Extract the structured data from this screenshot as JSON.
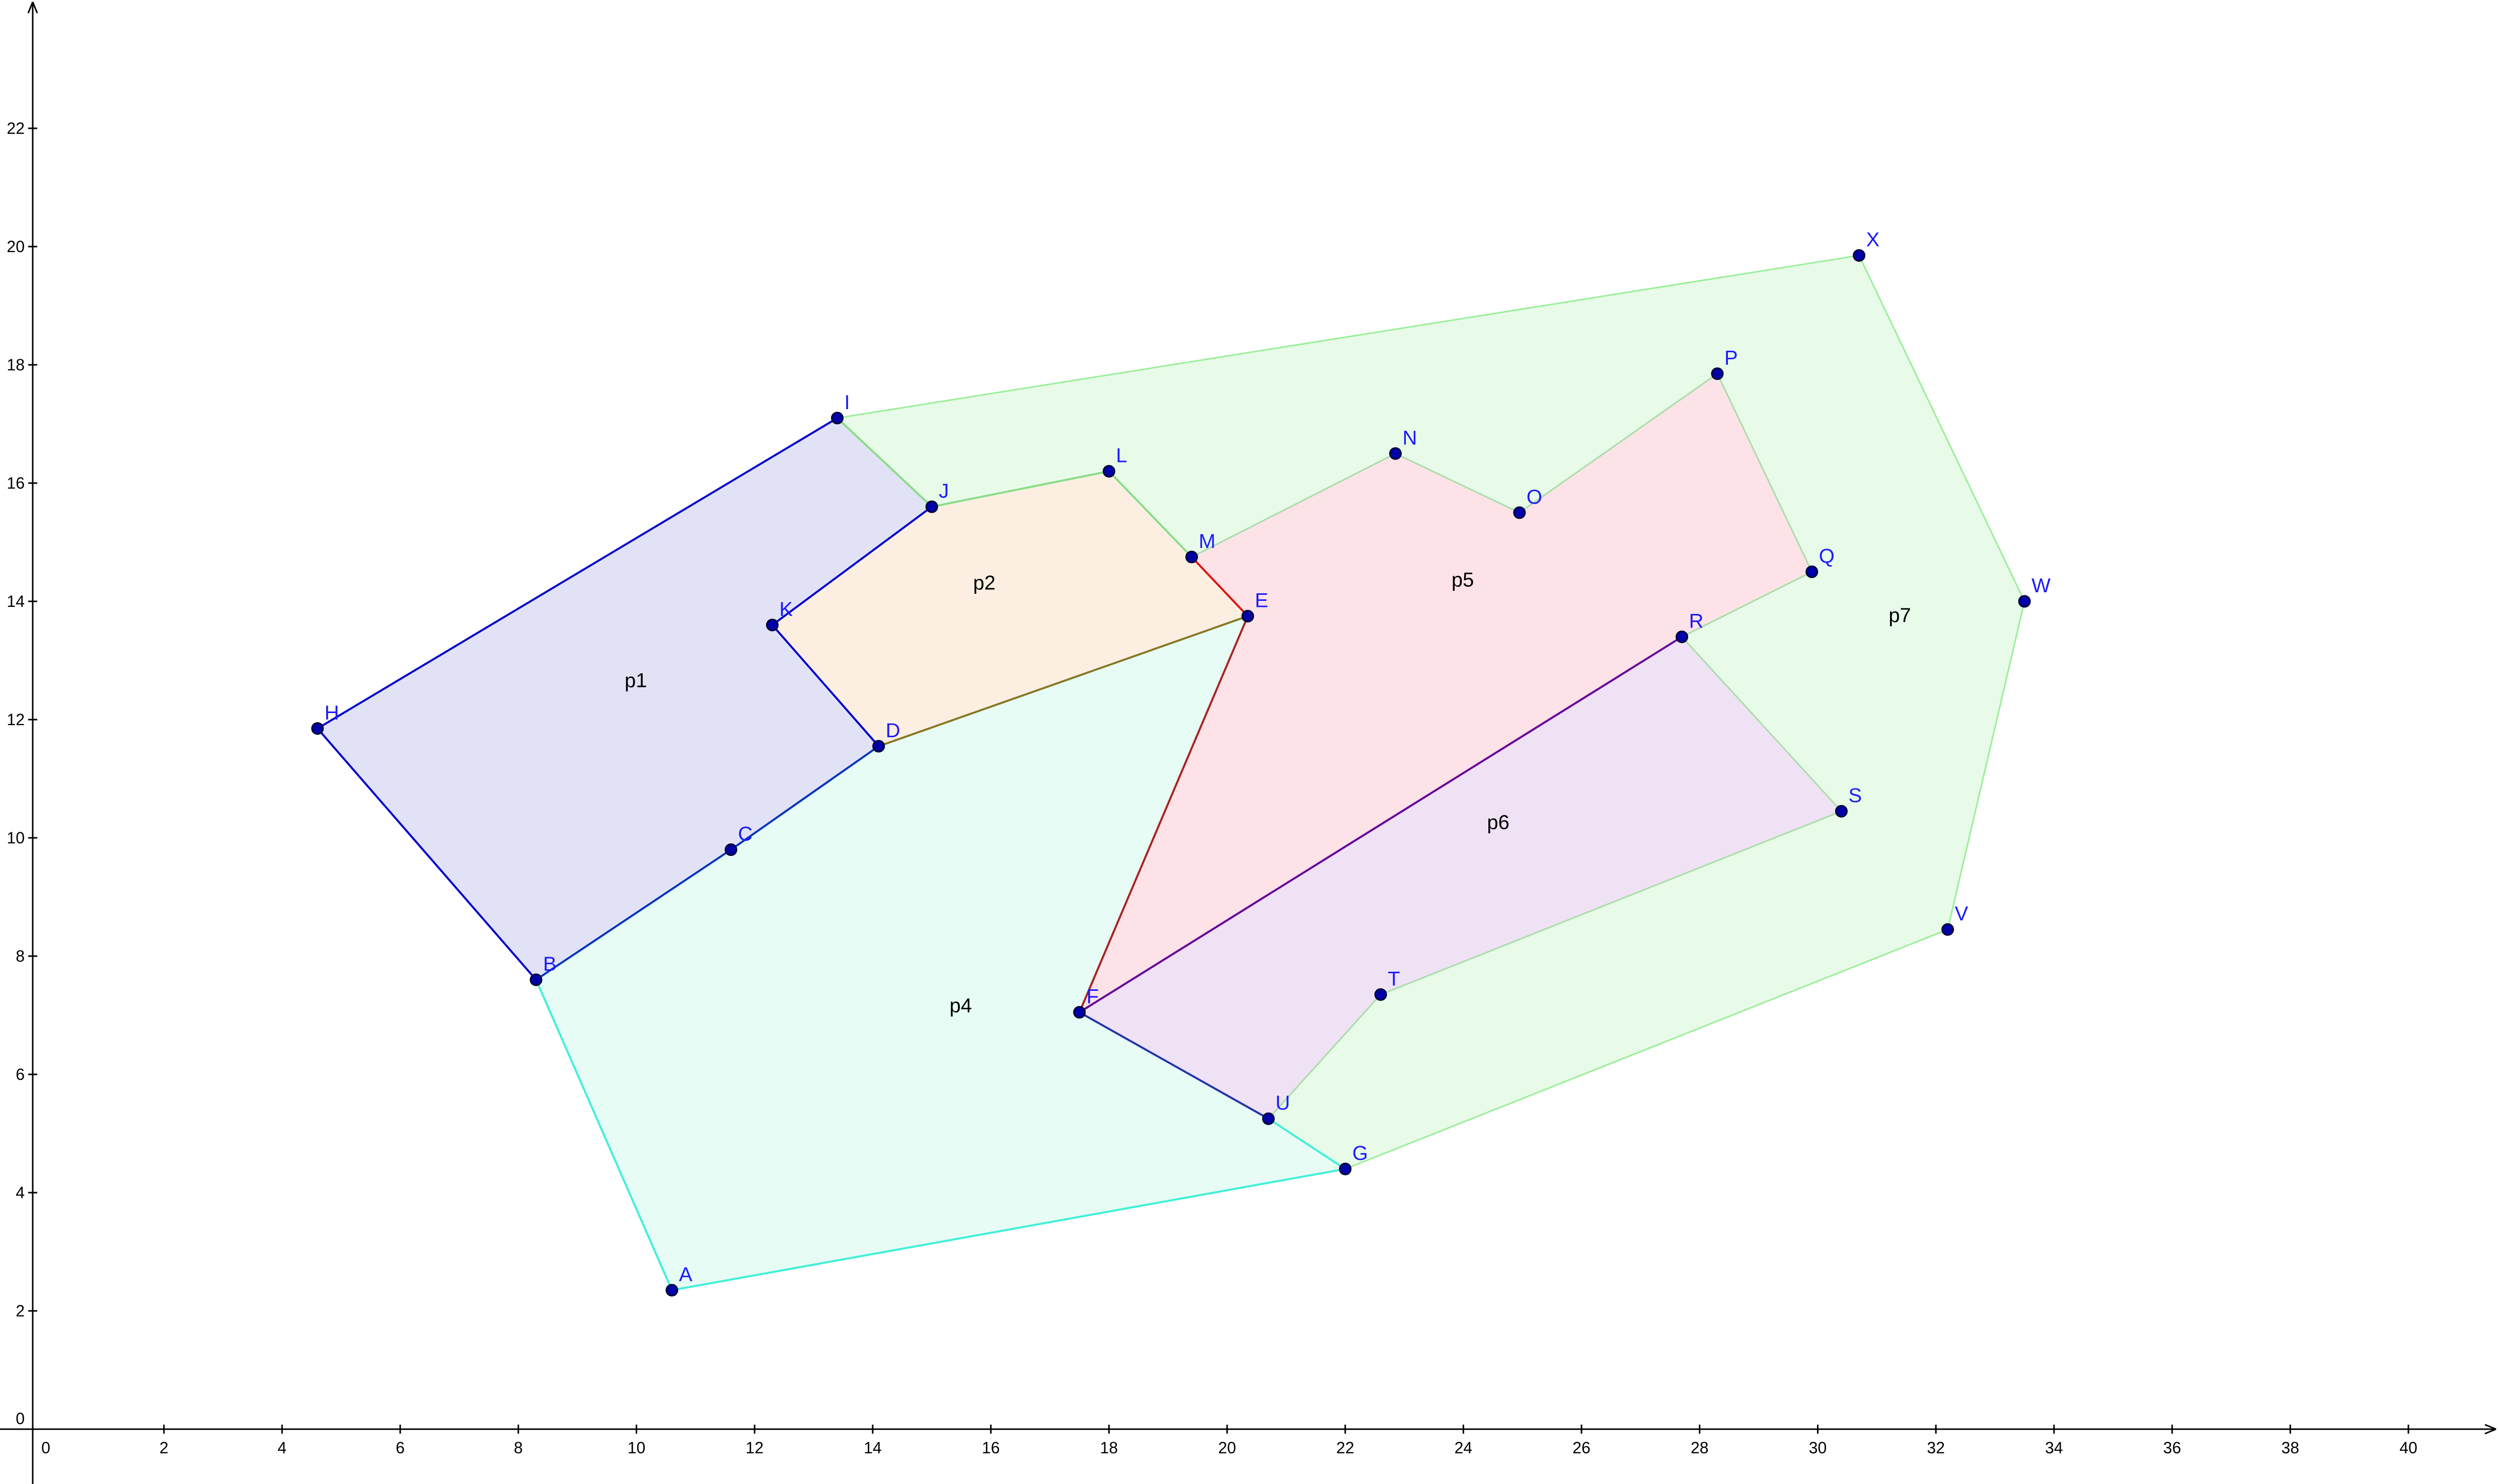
{
  "axes": {
    "x_ticks": [
      "0",
      "2",
      "4",
      "6",
      "8",
      "10",
      "12",
      "14",
      "16",
      "18",
      "20",
      "22",
      "24",
      "26",
      "28",
      "30",
      "32",
      "34",
      "36",
      "38",
      "40"
    ],
    "y_ticks": [
      "0",
      "2",
      "4",
      "6",
      "8",
      "10",
      "12",
      "14",
      "16",
      "18",
      "20",
      "22"
    ],
    "x_range": [
      -0.8,
      41.5
    ],
    "y_range": [
      -1.0,
      24.0
    ]
  },
  "points": [
    {
      "name": "A",
      "x": 10.6,
      "y": 2.35
    },
    {
      "name": "B",
      "x": 8.3,
      "y": 7.6
    },
    {
      "name": "C",
      "x": 11.6,
      "y": 9.8
    },
    {
      "name": "D",
      "x": 14.1,
      "y": 11.55
    },
    {
      "name": "E",
      "x": 20.35,
      "y": 13.75
    },
    {
      "name": "F",
      "x": 17.5,
      "y": 7.05
    },
    {
      "name": "G",
      "x": 22.0,
      "y": 4.4
    },
    {
      "name": "H",
      "x": 4.6,
      "y": 11.85
    },
    {
      "name": "I",
      "x": 13.4,
      "y": 17.1
    },
    {
      "name": "J",
      "x": 15.0,
      "y": 15.6
    },
    {
      "name": "K",
      "x": 12.3,
      "y": 13.6
    },
    {
      "name": "L",
      "x": 18.0,
      "y": 16.2
    },
    {
      "name": "M",
      "x": 19.4,
      "y": 14.75
    },
    {
      "name": "N",
      "x": 22.85,
      "y": 16.5
    },
    {
      "name": "O",
      "x": 24.95,
      "y": 15.5
    },
    {
      "name": "P",
      "x": 28.3,
      "y": 17.85
    },
    {
      "name": "Q",
      "x": 29.9,
      "y": 14.5
    },
    {
      "name": "R",
      "x": 27.7,
      "y": 13.4
    },
    {
      "name": "S",
      "x": 30.4,
      "y": 10.45
    },
    {
      "name": "T",
      "x": 22.6,
      "y": 7.35
    },
    {
      "name": "U",
      "x": 20.7,
      "y": 5.25
    },
    {
      "name": "V",
      "x": 32.2,
      "y": 8.45
    },
    {
      "name": "W",
      "x": 33.5,
      "y": 14.0
    },
    {
      "name": "X",
      "x": 30.7,
      "y": 19.85
    }
  ],
  "polygons": [
    {
      "name": "p7",
      "label": "p7",
      "vertices": [
        "I",
        "X",
        "W",
        "V",
        "G",
        "U",
        "T",
        "S",
        "R",
        "Q",
        "P",
        "O",
        "N",
        "M",
        "L",
        "J"
      ],
      "fill": "#e8fbe8",
      "stroke": "#99ee99",
      "label_pos": [
        31.2,
        13.65
      ]
    },
    {
      "name": "p4",
      "label": "p4",
      "vertices": [
        "A",
        "B",
        "C",
        "D",
        "E",
        "F",
        "U",
        "G"
      ],
      "fill": "#e6fcf5",
      "stroke": "#40f0d8",
      "label_pos": [
        15.3,
        7.05
      ]
    },
    {
      "name": "p1",
      "label": "p1",
      "vertices": [
        "H",
        "I",
        "J",
        "K",
        "D",
        "C",
        "B"
      ],
      "fill": "#e2e2f6",
      "stroke": "#0000cc",
      "label_pos": [
        9.8,
        12.55
      ]
    },
    {
      "name": "p2",
      "label": "p2",
      "vertices": [
        "J",
        "L",
        "M",
        "E",
        "D",
        "K"
      ],
      "fill": "#fcefe2",
      "stroke": "#aaddaa",
      "label_pos": [
        15.7,
        14.2
      ]
    },
    {
      "name": "p5",
      "label": "p5",
      "vertices": [
        "M",
        "N",
        "O",
        "P",
        "Q",
        "R",
        "F",
        "E"
      ],
      "fill": "#fde2e8",
      "stroke": "#aaddaa",
      "label_pos": [
        23.8,
        14.25
      ]
    },
    {
      "name": "p6",
      "label": "p6",
      "vertices": [
        "F",
        "R",
        "S",
        "T",
        "U"
      ],
      "fill": "#efe2f5",
      "stroke": "#aaddaa",
      "label_pos": [
        24.4,
        10.15
      ]
    }
  ],
  "highlight_segments": [
    {
      "from": "I",
      "to": "J",
      "color": "#88dd88"
    },
    {
      "from": "J",
      "to": "L",
      "color": "#88dd88"
    },
    {
      "from": "L",
      "to": "M",
      "color": "#88dd88"
    },
    {
      "from": "M",
      "to": "E",
      "color": "#dd1111"
    },
    {
      "from": "E",
      "to": "F",
      "color": "#aa2222"
    },
    {
      "from": "D",
      "to": "E",
      "color": "#887722"
    },
    {
      "from": "F",
      "to": "R",
      "color": "#660099"
    },
    {
      "from": "F",
      "to": "U",
      "color": "#2233aa"
    },
    {
      "from": "U",
      "to": "G",
      "color": "#40f0d8"
    },
    {
      "from": "G",
      "to": "A",
      "color": "#40f0d8"
    },
    {
      "from": "A",
      "to": "B",
      "color": "#40f0d8"
    },
    {
      "from": "B",
      "to": "C",
      "color": "#0033bb"
    },
    {
      "from": "C",
      "to": "D",
      "color": "#0033bb"
    },
    {
      "from": "H",
      "to": "I",
      "color": "#0000cc"
    },
    {
      "from": "H",
      "to": "B",
      "color": "#0000cc"
    },
    {
      "from": "J",
      "to": "K",
      "color": "#0000cc"
    },
    {
      "from": "K",
      "to": "D",
      "color": "#0000cc"
    }
  ],
  "colors": {
    "axis": "#000000",
    "point_fill": "#0000aa",
    "point_stroke": "#000033",
    "point_label": "#1a1aff"
  }
}
